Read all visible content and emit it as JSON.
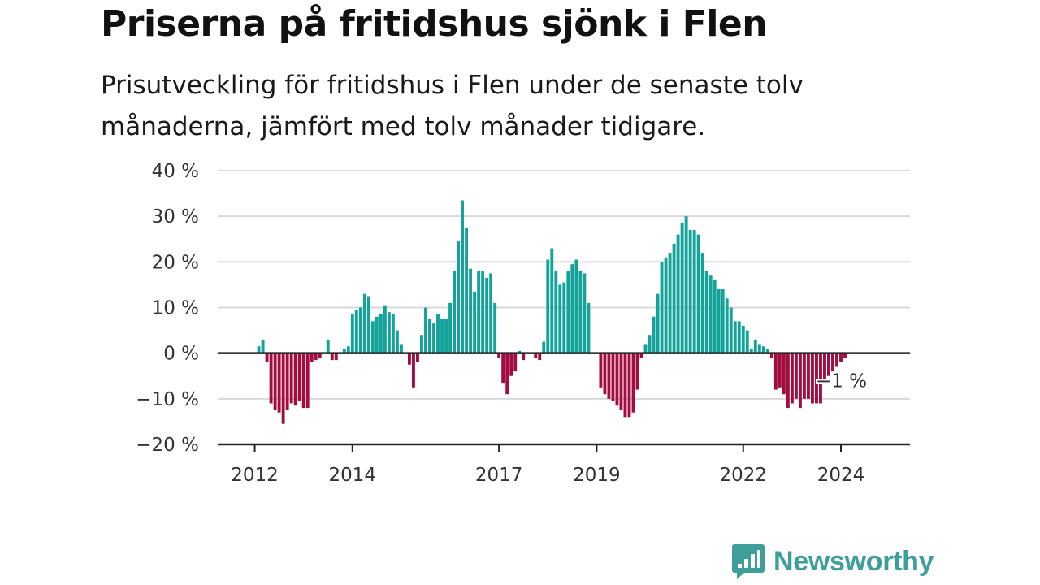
{
  "title": "Priserna på fritidshus sjönk i Flen",
  "subtitle": "Prisutveckling för fritidshus i Flen under de senaste tolv månaderna, jämfört med tolv månader tidigare.",
  "brand": {
    "name": "Newsworthy",
    "icon": "newsworthy-logo-icon",
    "color": "#3e9e99"
  },
  "colors": {
    "positive": "#14a39a",
    "negative": "#a30c3e",
    "grid": "#d9d9d9",
    "axis": "#222222"
  },
  "chart_data": {
    "type": "bar",
    "ylim": [
      -20,
      40
    ],
    "y_ticks": [
      40,
      30,
      20,
      10,
      0,
      -10,
      -20
    ],
    "y_tick_labels": [
      "40 %",
      "30 %",
      "20 %",
      "10 %",
      "0 %",
      "−10 %",
      "−20 %"
    ],
    "x_start": "2011-07",
    "x_ticks": [
      {
        "label": "2012",
        "date": "2012-01"
      },
      {
        "label": "2014",
        "date": "2014-01"
      },
      {
        "label": "2017",
        "date": "2017-01"
      },
      {
        "label": "2019",
        "date": "2019-01"
      },
      {
        "label": "2022",
        "date": "2022-01"
      },
      {
        "label": "2024",
        "date": "2024-01"
      }
    ],
    "values": [
      0,
      0,
      0,
      0,
      0,
      0,
      0,
      1.5,
      3,
      -2,
      -11,
      -12.5,
      -13,
      -15.5,
      -12.5,
      -11,
      -11.5,
      -10.5,
      -12,
      -12,
      -2,
      -1.5,
      -1,
      0,
      3,
      -1.5,
      -1.5,
      0,
      1,
      1.5,
      8.5,
      9.5,
      10,
      13,
      12.5,
      7,
      8,
      8.5,
      10.5,
      9,
      8.5,
      5,
      2,
      0,
      -2.5,
      -7.5,
      -2,
      4,
      10,
      7.5,
      6.5,
      8.5,
      7.5,
      7.5,
      11,
      18,
      24.5,
      33.5,
      27.5,
      18.5,
      13.5,
      18,
      18,
      16.5,
      17.5,
      11,
      -1,
      -6.5,
      -9,
      -5,
      -4,
      0.5,
      -1.5,
      0,
      0,
      -1,
      -1.5,
      2.5,
      20.5,
      23,
      18,
      15,
      15.5,
      18,
      19.5,
      20.5,
      18,
      17.5,
      11,
      0,
      0,
      -7.5,
      -9,
      -10,
      -10.5,
      -11.5,
      -12.5,
      -14,
      -14,
      -13,
      -8,
      -1,
      2,
      4,
      8,
      13,
      20,
      21,
      22,
      24,
      26,
      28.5,
      30,
      27,
      27,
      26,
      22,
      18,
      17,
      16,
      14,
      14,
      12,
      10,
      7,
      7,
      6,
      5,
      1,
      3,
      2,
      1.5,
      1,
      -1,
      -8,
      -7.5,
      -9,
      -12,
      -11,
      -10,
      -12,
      -10,
      -10,
      -11,
      -11,
      -11,
      -6,
      -5,
      -4,
      -3,
      -2,
      -1
    ],
    "last_value_label": "−1 %"
  }
}
